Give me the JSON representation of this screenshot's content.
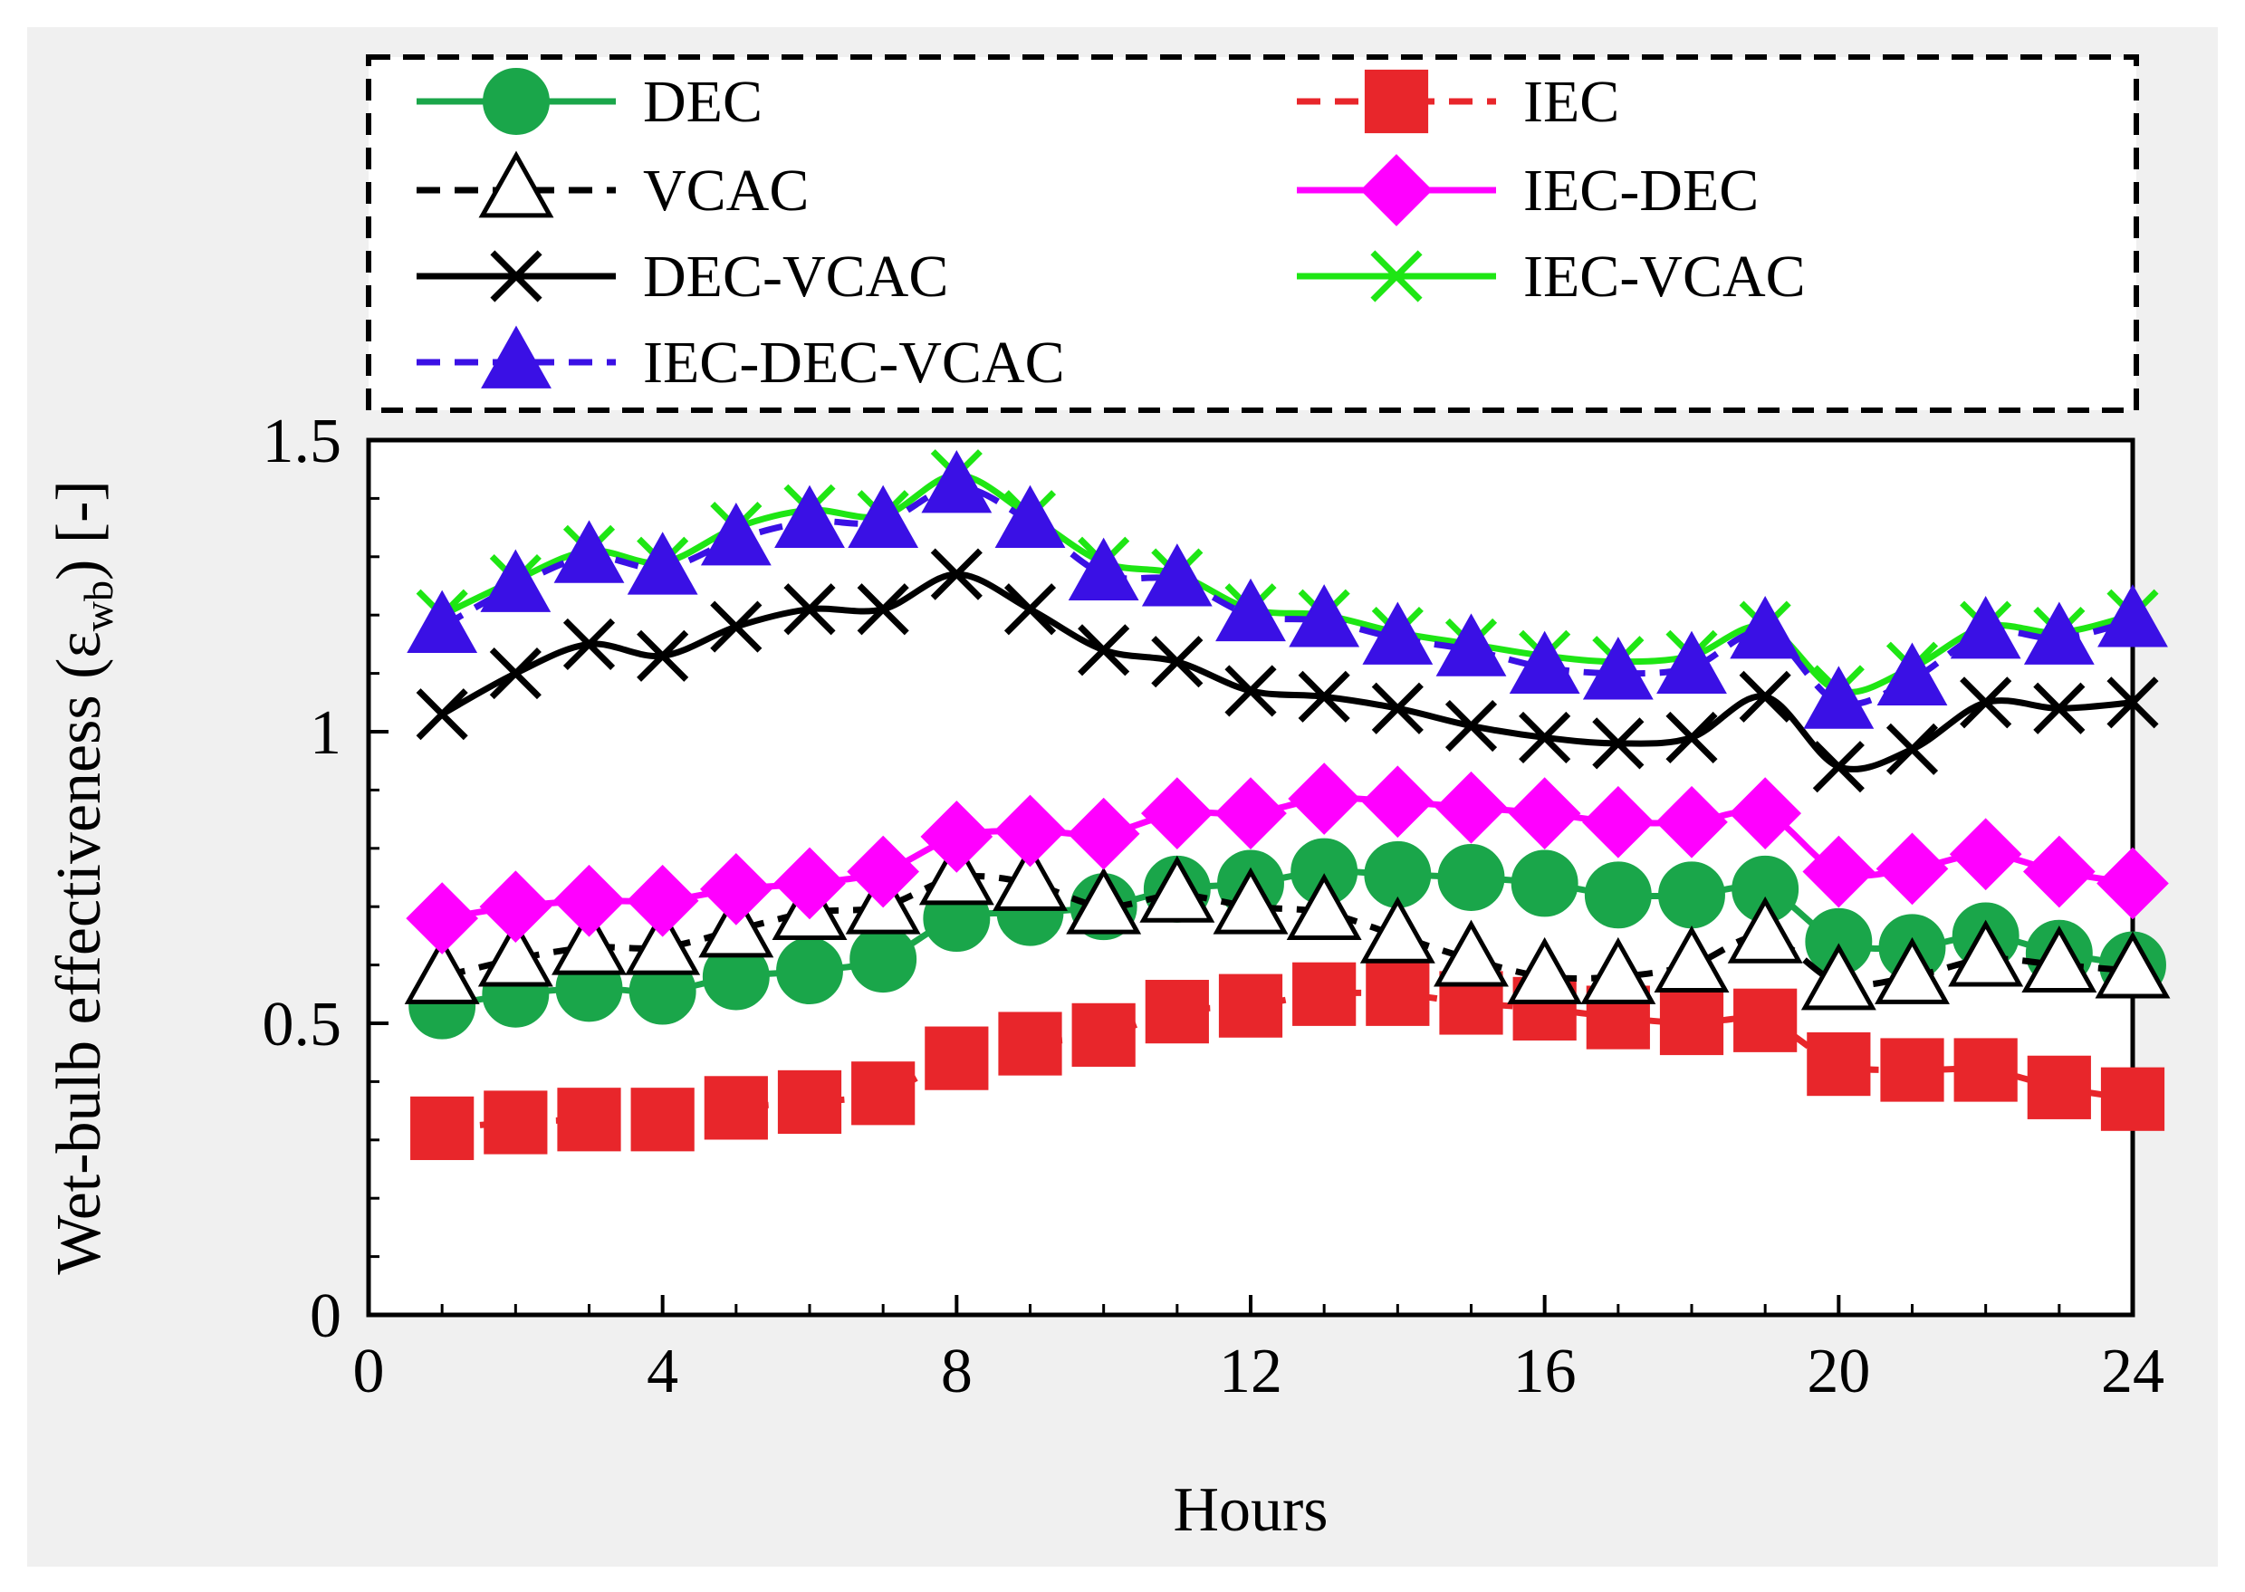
{
  "chart_data": {
    "type": "line",
    "title": "",
    "xlabel": "Hours",
    "ylabel": "Wet-bulb effectiveness (ε",
    "ylabel_sub": "wb",
    "ylabel_suffix": ") [-]",
    "xlim": [
      0,
      24
    ],
    "ylim": [
      0,
      1.5
    ],
    "xticks": [
      0,
      4,
      8,
      12,
      16,
      20,
      24
    ],
    "xtick_labels": [
      "0",
      "4",
      "8",
      "12",
      "16",
      "20",
      "24"
    ],
    "yticks": [
      0,
      0.5,
      1,
      1.5
    ],
    "ytick_labels": [
      "0",
      "0.5",
      "1",
      "1.5"
    ],
    "x": [
      1,
      2,
      3,
      4,
      5,
      6,
      7,
      8,
      9,
      10,
      11,
      12,
      13,
      14,
      15,
      16,
      17,
      18,
      19,
      20,
      21,
      22,
      23,
      24
    ],
    "series": [
      {
        "name": "DEC",
        "color": "#1aa64a",
        "marker": "circle",
        "dash": "solid",
        "values": [
          0.53,
          0.55,
          0.56,
          0.555,
          0.58,
          0.59,
          0.61,
          0.68,
          0.69,
          0.7,
          0.73,
          0.74,
          0.76,
          0.755,
          0.75,
          0.74,
          0.72,
          0.72,
          0.73,
          0.64,
          0.63,
          0.65,
          0.62,
          0.6
        ]
      },
      {
        "name": "IEC",
        "color": "#e8262b",
        "marker": "square",
        "dash": "dashed",
        "values": [
          0.32,
          0.33,
          0.335,
          0.335,
          0.355,
          0.365,
          0.38,
          0.44,
          0.465,
          0.48,
          0.52,
          0.53,
          0.55,
          0.55,
          0.535,
          0.525,
          0.51,
          0.5,
          0.505,
          0.43,
          0.42,
          0.42,
          0.39,
          0.37
        ]
      },
      {
        "name": "VCAC",
        "color": "#000000",
        "marker": "triangle-open",
        "dash": "dashed",
        "values": [
          0.58,
          0.61,
          0.63,
          0.63,
          0.66,
          0.69,
          0.7,
          0.75,
          0.74,
          0.7,
          0.72,
          0.7,
          0.69,
          0.65,
          0.61,
          0.58,
          0.58,
          0.6,
          0.65,
          0.57,
          0.58,
          0.61,
          0.6,
          0.59
        ]
      },
      {
        "name": "IEC-DEC",
        "color": "#ff00ff",
        "marker": "diamond",
        "dash": "solid",
        "values": [
          0.68,
          0.7,
          0.71,
          0.71,
          0.73,
          0.74,
          0.76,
          0.82,
          0.83,
          0.825,
          0.86,
          0.86,
          0.885,
          0.88,
          0.87,
          0.86,
          0.845,
          0.845,
          0.86,
          0.76,
          0.765,
          0.79,
          0.76,
          0.74
        ]
      },
      {
        "name": "DEC-VCAC",
        "color": "#000000",
        "marker": "x",
        "dash": "solid",
        "values": [
          1.03,
          1.1,
          1.15,
          1.13,
          1.18,
          1.21,
          1.21,
          1.27,
          1.21,
          1.14,
          1.12,
          1.07,
          1.06,
          1.04,
          1.01,
          0.99,
          0.98,
          0.99,
          1.06,
          0.94,
          0.97,
          1.05,
          1.04,
          1.05
        ]
      },
      {
        "name": "IEC-VCAC",
        "color": "#1ee614",
        "marker": "x",
        "dash": "solid",
        "values": [
          1.2,
          1.26,
          1.31,
          1.29,
          1.35,
          1.38,
          1.37,
          1.44,
          1.37,
          1.29,
          1.27,
          1.21,
          1.2,
          1.17,
          1.15,
          1.13,
          1.12,
          1.13,
          1.18,
          1.07,
          1.11,
          1.18,
          1.17,
          1.2
        ]
      },
      {
        "name": "IEC-DEC-VCAC",
        "color": "#3a10e5",
        "marker": "triangle-filled",
        "dash": "dashed",
        "values": [
          1.18,
          1.25,
          1.3,
          1.28,
          1.33,
          1.36,
          1.36,
          1.42,
          1.36,
          1.27,
          1.26,
          1.2,
          1.19,
          1.16,
          1.14,
          1.11,
          1.1,
          1.11,
          1.17,
          1.05,
          1.09,
          1.17,
          1.16,
          1.19
        ]
      }
    ],
    "legend": {
      "columns": [
        [
          "DEC",
          "VCAC",
          "DEC-VCAC",
          "IEC-DEC-VCAC"
        ],
        [
          "IEC",
          "IEC-DEC",
          "IEC-VCAC"
        ]
      ]
    }
  }
}
